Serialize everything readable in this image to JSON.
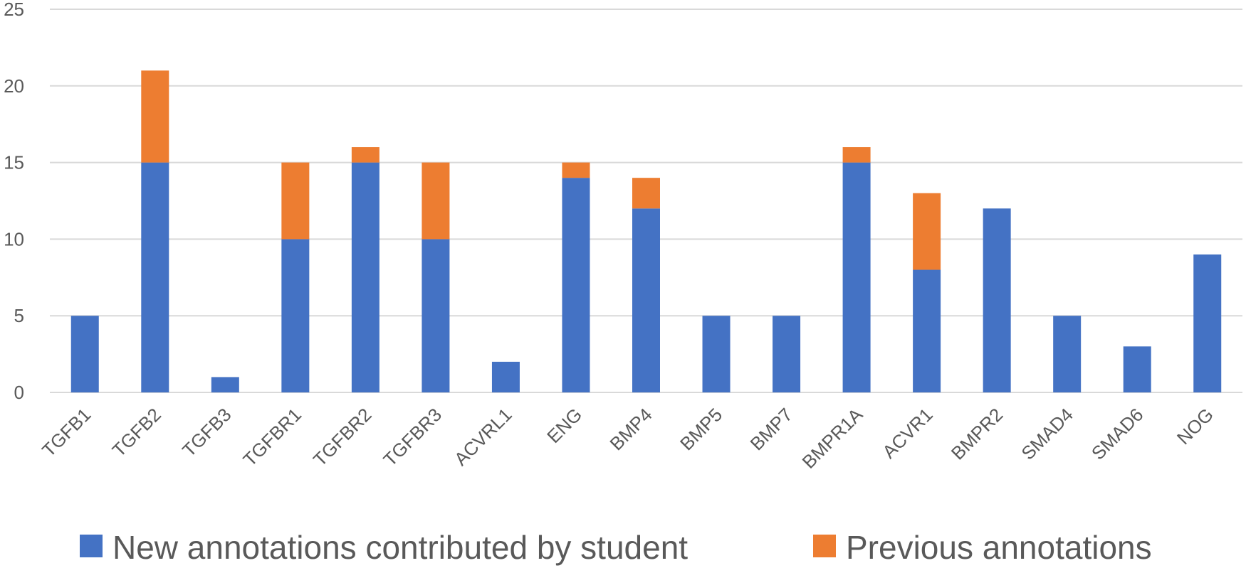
{
  "chart_data": {
    "type": "bar",
    "stacked": true,
    "categories": [
      "TGFB1",
      "TGFB2",
      "TGFB3",
      "TGFBR1",
      "TGFBR2",
      "TGFBR3",
      "ACVRL1",
      "ENG",
      "BMP4",
      "BMP5",
      "BMP7",
      "BMPR1A",
      "ACVR1",
      "BMPR2",
      "SMAD4",
      "SMAD6",
      "NOG"
    ],
    "series": [
      {
        "name": "New annotations contributed by student",
        "color": "#4472C4",
        "values": [
          5,
          15,
          1,
          10,
          15,
          10,
          2,
          14,
          12,
          5,
          5,
          15,
          8,
          12,
          5,
          3,
          9
        ]
      },
      {
        "name": "Previous annotations",
        "color": "#ED7D31",
        "values": [
          0,
          6,
          0,
          5,
          1,
          5,
          0,
          1,
          2,
          0,
          0,
          1,
          5,
          0,
          0,
          0,
          0
        ]
      }
    ],
    "yticks": [
      "0",
      "5",
      "10",
      "15",
      "20",
      "25"
    ],
    "ylim": [
      0,
      25
    ],
    "grid": true,
    "legend_position": "bottom"
  }
}
